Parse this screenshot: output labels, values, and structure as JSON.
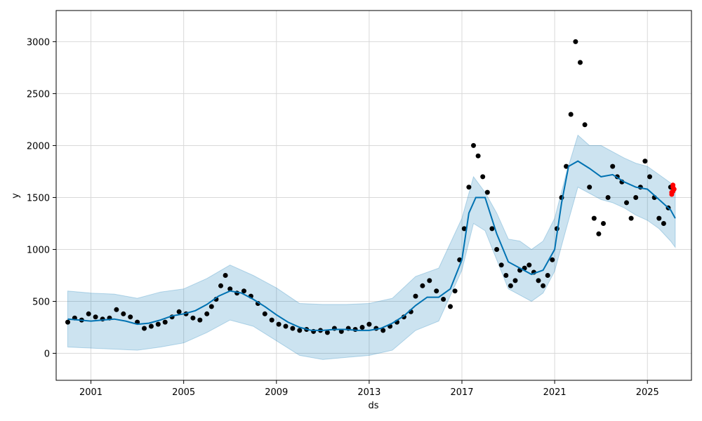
{
  "chart_data": {
    "type": "scatter",
    "title": "",
    "xlabel": "ds",
    "ylabel": "y",
    "xlim": [
      1999.5,
      2026.9
    ],
    "ylim": [
      -260,
      3300
    ],
    "x_ticks": [
      2001,
      2005,
      2009,
      2013,
      2017,
      2021,
      2025
    ],
    "y_ticks": [
      0,
      500,
      1000,
      1500,
      2000,
      2500,
      3000
    ],
    "grid": true,
    "colors": {
      "observed": "#000000",
      "forecast_line": "#0072B2",
      "uncertainty_band": "#0072B2",
      "highlight_points": "#ff0000"
    },
    "series": [
      {
        "role": "observed",
        "x": [
          2000.0,
          2000.3,
          2000.6,
          2000.9,
          2001.2,
          2001.5,
          2001.8,
          2002.1,
          2002.4,
          2002.7,
          2003.0,
          2003.3,
          2003.6,
          2003.9,
          2004.2,
          2004.5,
          2004.8,
          2005.1,
          2005.4,
          2005.7,
          2006.0,
          2006.2,
          2006.4,
          2006.6,
          2006.8,
          2007.0,
          2007.3,
          2007.6,
          2007.9,
          2008.2,
          2008.5,
          2008.8,
          2009.1,
          2009.4,
          2009.7,
          2010.0,
          2010.3,
          2010.6,
          2010.9,
          2011.2,
          2011.5,
          2011.8,
          2012.1,
          2012.4,
          2012.7,
          2013.0,
          2013.3,
          2013.6,
          2013.9,
          2014.2,
          2014.5,
          2014.8,
          2015.0,
          2015.3,
          2015.6,
          2015.9,
          2016.2,
          2016.5,
          2016.7,
          2016.9,
          2017.1,
          2017.3,
          2017.5,
          2017.7,
          2017.9,
          2018.1,
          2018.3,
          2018.5,
          2018.7,
          2018.9,
          2019.1,
          2019.3,
          2019.5,
          2019.7,
          2019.9,
          2020.1,
          2020.3,
          2020.5,
          2020.7,
          2020.9,
          2021.1,
          2021.3,
          2021.5,
          2021.7,
          2021.9,
          2022.1,
          2022.3,
          2022.5,
          2022.7,
          2022.9,
          2023.1,
          2023.3,
          2023.5,
          2023.7,
          2023.9,
          2024.1,
          2024.3,
          2024.5,
          2024.7,
          2024.9,
          2025.1,
          2025.3,
          2025.5,
          2025.7,
          2025.9,
          2026.0
        ],
        "y": [
          300,
          340,
          320,
          380,
          350,
          330,
          340,
          420,
          380,
          350,
          300,
          240,
          260,
          280,
          300,
          350,
          400,
          380,
          340,
          320,
          380,
          450,
          520,
          650,
          750,
          620,
          580,
          600,
          550,
          480,
          380,
          320,
          280,
          260,
          240,
          220,
          230,
          210,
          220,
          200,
          240,
          210,
          240,
          230,
          250,
          280,
          240,
          220,
          260,
          300,
          350,
          400,
          550,
          650,
          700,
          600,
          520,
          450,
          600,
          900,
          1200,
          1600,
          2000,
          1900,
          1700,
          1550,
          1200,
          1000,
          850,
          750,
          650,
          700,
          800,
          820,
          850,
          780,
          700,
          650,
          750,
          900,
          1200,
          1500,
          1800,
          2300,
          3000,
          2800,
          2200,
          1600,
          1300,
          1150,
          1250,
          1500,
          1800,
          1700,
          1650,
          1450,
          1300,
          1500,
          1600,
          1850,
          1700,
          1500,
          1300,
          1250,
          1400,
          1600
        ],
        "name": ""
      },
      {
        "role": "forecast",
        "x": [
          2000.0,
          2000.5,
          2001.0,
          2001.5,
          2002.0,
          2002.5,
          2003.0,
          2003.5,
          2004.0,
          2004.5,
          2005.0,
          2005.5,
          2006.0,
          2006.5,
          2007.0,
          2007.5,
          2008.0,
          2008.5,
          2009.0,
          2009.5,
          2010.0,
          2010.5,
          2011.0,
          2011.5,
          2012.0,
          2012.5,
          2013.0,
          2013.5,
          2014.0,
          2014.5,
          2015.0,
          2015.5,
          2016.0,
          2016.5,
          2017.0,
          2017.3,
          2017.6,
          2018.0,
          2018.5,
          2019.0,
          2019.5,
          2020.0,
          2020.5,
          2021.0,
          2021.3,
          2021.6,
          2022.0,
          2022.5,
          2023.0,
          2023.5,
          2024.0,
          2024.5,
          2025.0,
          2025.5,
          2026.0,
          2026.2
        ],
        "y": [
          330,
          320,
          310,
          320,
          330,
          310,
          280,
          290,
          320,
          360,
          380,
          410,
          470,
          550,
          600,
          580,
          520,
          450,
          370,
          300,
          250,
          220,
          220,
          230,
          230,
          220,
          220,
          240,
          290,
          360,
          460,
          540,
          540,
          620,
          900,
          1350,
          1500,
          1500,
          1150,
          880,
          820,
          760,
          800,
          1000,
          1450,
          1800,
          1850,
          1780,
          1700,
          1720,
          1650,
          1600,
          1580,
          1480,
          1380,
          1300
        ],
        "name": ""
      },
      {
        "role": "upper_bound",
        "x": [
          2000.0,
          2001.0,
          2002.0,
          2003.0,
          2004.0,
          2005.0,
          2006.0,
          2007.0,
          2008.0,
          2009.0,
          2010.0,
          2011.0,
          2012.0,
          2013.0,
          2014.0,
          2015.0,
          2016.0,
          2017.0,
          2017.5,
          2018.0,
          2018.5,
          2019.0,
          2019.5,
          2020.0,
          2020.5,
          2021.0,
          2021.5,
          2022.0,
          2022.5,
          2023.0,
          2023.5,
          2024.0,
          2024.5,
          2025.0,
          2025.5,
          2026.0,
          2026.2
        ],
        "y": [
          600,
          580,
          570,
          530,
          590,
          620,
          720,
          850,
          750,
          630,
          480,
          470,
          470,
          480,
          530,
          740,
          820,
          1300,
          1700,
          1550,
          1350,
          1100,
          1080,
          1000,
          1080,
          1300,
          1730,
          2100,
          2000,
          2000,
          1940,
          1880,
          1830,
          1800,
          1720,
          1640,
          1570
        ],
        "name": ""
      },
      {
        "role": "lower_bound",
        "x": [
          2000.0,
          2001.0,
          2002.0,
          2003.0,
          2004.0,
          2005.0,
          2006.0,
          2007.0,
          2008.0,
          2009.0,
          2010.0,
          2011.0,
          2012.0,
          2013.0,
          2014.0,
          2015.0,
          2016.0,
          2017.0,
          2017.5,
          2018.0,
          2018.5,
          2019.0,
          2019.5,
          2020.0,
          2020.5,
          2021.0,
          2021.5,
          2022.0,
          2022.5,
          2023.0,
          2023.5,
          2024.0,
          2024.5,
          2025.0,
          2025.5,
          2026.0,
          2026.2
        ],
        "y": [
          60,
          50,
          40,
          30,
          60,
          100,
          200,
          320,
          260,
          120,
          -20,
          -60,
          -40,
          -20,
          30,
          220,
          310,
          800,
          1250,
          1180,
          900,
          620,
          560,
          500,
          580,
          790,
          1200,
          1600,
          1540,
          1480,
          1450,
          1400,
          1330,
          1280,
          1200,
          1080,
          1020
        ],
        "name": ""
      },
      {
        "role": "highlight",
        "x": [
          2026.05,
          2026.1,
          2026.1,
          2026.15,
          2026.05,
          2026.1
        ],
        "y": [
          1530,
          1560,
          1600,
          1580,
          1550,
          1620
        ],
        "name": ""
      }
    ]
  }
}
